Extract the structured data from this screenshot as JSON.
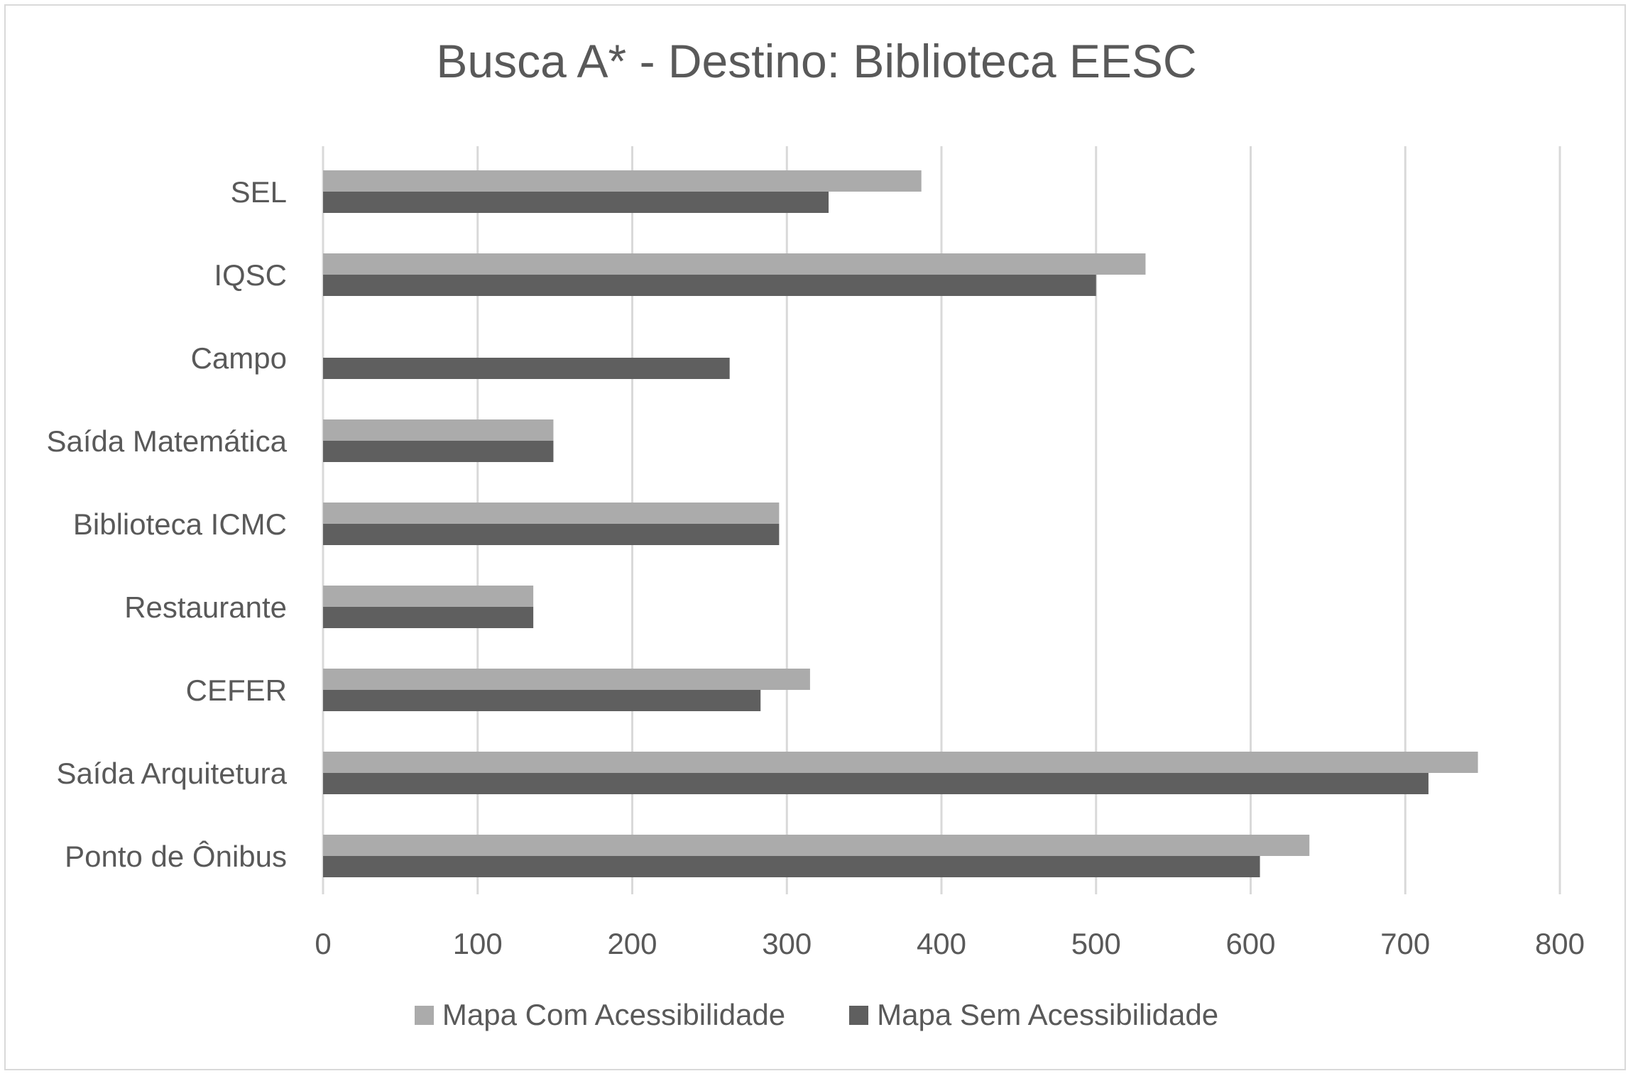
{
  "chart_data": {
    "type": "bar",
    "orientation": "horizontal",
    "title": "Busca A* - Destino: Biblioteca EESC",
    "categories": [
      "SEL",
      "IQSC",
      "Campo",
      "Saída Matemática",
      "Biblioteca ICMC",
      "Restaurante",
      "CEFER",
      "Saída Arquitetura",
      "Ponto de Ônibus"
    ],
    "series": [
      {
        "name": "Mapa Com Acessibilidade",
        "color": "#ababab",
        "values": [
          387,
          532,
          0,
          149,
          295,
          136,
          315,
          747,
          638
        ]
      },
      {
        "name": "Mapa Sem Acessibilidade",
        "color": "#5f5f5f",
        "values": [
          327,
          500,
          263,
          149,
          295,
          136,
          283,
          715,
          606
        ]
      }
    ],
    "xlim": [
      0,
      800
    ],
    "xticks": [
      0,
      100,
      200,
      300,
      400,
      500,
      600,
      700,
      800
    ],
    "xtick_labels": [
      "0",
      "100",
      "200",
      "300",
      "400",
      "500",
      "600",
      "700",
      "800"
    ],
    "grid": "vertical",
    "legend_position": "bottom"
  }
}
